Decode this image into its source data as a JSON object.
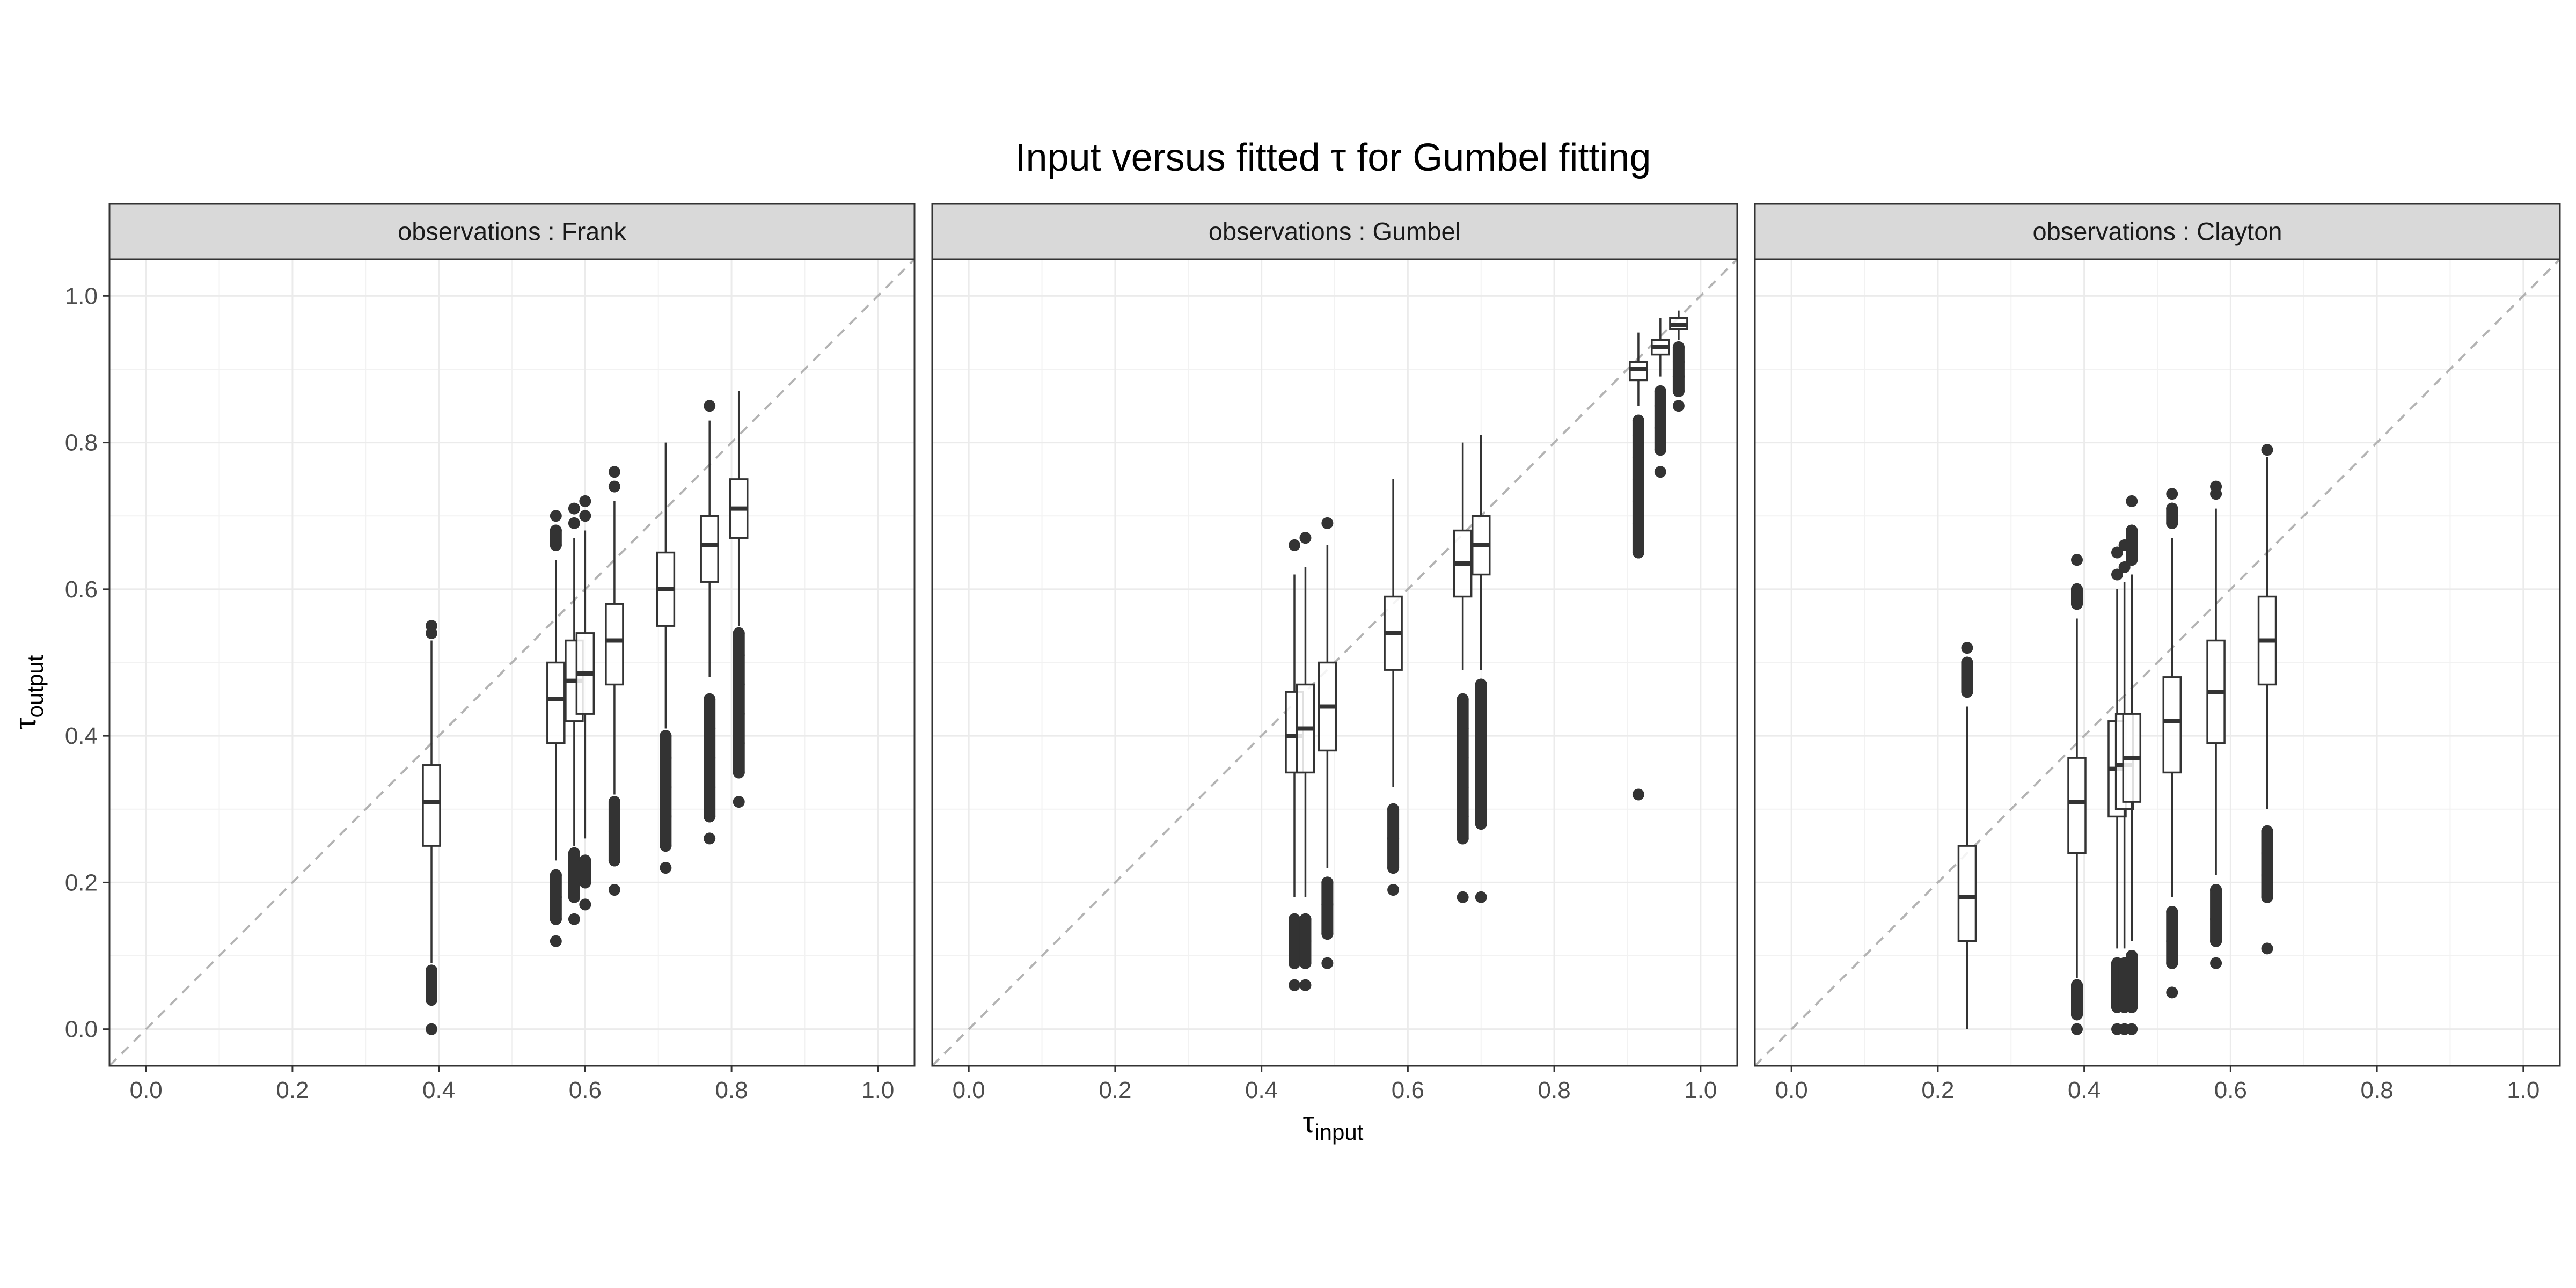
{
  "chart_data": {
    "type": "boxplot",
    "title": "Input versus fitted τ for Gumbel  fitting",
    "xlabel": {
      "symbol": "τ",
      "subscript": "input"
    },
    "ylabel": {
      "symbol": "τ",
      "subscript": "output"
    },
    "xlim": [
      -0.05,
      1.05
    ],
    "ylim": [
      -0.05,
      1.05
    ],
    "x_ticks": [
      0.0,
      0.2,
      0.4,
      0.6,
      0.8,
      1.0
    ],
    "x_tick_labels": [
      "0.0",
      "0.2",
      "0.4",
      "0.6",
      "0.8",
      "1.0"
    ],
    "y_ticks": [
      0.0,
      0.2,
      0.4,
      0.6,
      0.8,
      1.0
    ],
    "y_tick_labels": [
      "0.0",
      "0.2",
      "0.4",
      "0.6",
      "0.8",
      "1.0"
    ],
    "grid": true,
    "reference_line": "y = x (dashed)",
    "facets": [
      {
        "label": "observations : Frank",
        "boxes": [
          {
            "x": 0.39,
            "whisker_low": 0.09,
            "q1": 0.25,
            "median": 0.31,
            "q3": 0.36,
            "whisker_high": 0.53,
            "outliers_low": [
              0.0,
              0.04,
              0.06,
              0.08
            ],
            "outliers_high": [
              0.54,
              0.55
            ]
          },
          {
            "x": 0.56,
            "whisker_low": 0.23,
            "q1": 0.39,
            "median": 0.45,
            "q3": 0.5,
            "whisker_high": 0.64,
            "outliers_low": [
              0.12,
              0.15,
              0.18,
              0.21
            ],
            "outliers_high": [
              0.66,
              0.68,
              0.7
            ]
          },
          {
            "x": 0.585,
            "whisker_low": 0.25,
            "q1": 0.42,
            "median": 0.475,
            "q3": 0.53,
            "whisker_high": 0.67,
            "outliers_low": [
              0.15,
              0.18,
              0.21,
              0.24
            ],
            "outliers_high": [
              0.69,
              0.71
            ]
          },
          {
            "x": 0.6,
            "whisker_low": 0.26,
            "q1": 0.43,
            "median": 0.485,
            "q3": 0.54,
            "whisker_high": 0.68,
            "outliers_low": [
              0.17,
              0.2,
              0.23
            ],
            "outliers_high": [
              0.7,
              0.72
            ]
          },
          {
            "x": 0.64,
            "whisker_low": 0.32,
            "q1": 0.47,
            "median": 0.53,
            "q3": 0.58,
            "whisker_high": 0.72,
            "outliers_low": [
              0.19,
              0.23,
              0.27,
              0.31
            ],
            "outliers_high": [
              0.74,
              0.76
            ]
          },
          {
            "x": 0.71,
            "whisker_low": 0.41,
            "q1": 0.55,
            "median": 0.6,
            "q3": 0.65,
            "whisker_high": 0.8,
            "outliers_low": [
              0.22,
              0.25,
              0.29,
              0.33,
              0.37,
              0.4
            ]
          },
          {
            "x": 0.77,
            "whisker_low": 0.48,
            "q1": 0.61,
            "median": 0.66,
            "q3": 0.7,
            "whisker_high": 0.83,
            "outliers_low": [
              0.26,
              0.29,
              0.33,
              0.37,
              0.41,
              0.45
            ],
            "outliers_high": [
              0.85
            ]
          },
          {
            "x": 0.81,
            "whisker_low": 0.55,
            "q1": 0.67,
            "median": 0.71,
            "q3": 0.75,
            "whisker_high": 0.87,
            "outliers_low": [
              0.31,
              0.35,
              0.39,
              0.43,
              0.47,
              0.51,
              0.54
            ]
          }
        ]
      },
      {
        "label": "observations : Gumbel",
        "boxes": [
          {
            "x": 0.445,
            "whisker_low": 0.18,
            "q1": 0.35,
            "median": 0.4,
            "q3": 0.46,
            "whisker_high": 0.62,
            "outliers_low": [
              0.06,
              0.09,
              0.12,
              0.15
            ],
            "outliers_high": [
              0.66
            ]
          },
          {
            "x": 0.46,
            "whisker_low": 0.18,
            "q1": 0.35,
            "median": 0.41,
            "q3": 0.47,
            "whisker_high": 0.63,
            "outliers_low": [
              0.06,
              0.09,
              0.12,
              0.15
            ],
            "outliers_high": [
              0.67
            ]
          },
          {
            "x": 0.49,
            "whisker_low": 0.22,
            "q1": 0.38,
            "median": 0.44,
            "q3": 0.5,
            "whisker_high": 0.66,
            "outliers_low": [
              0.09,
              0.13,
              0.17,
              0.2
            ],
            "outliers_high": [
              0.69
            ]
          },
          {
            "x": 0.58,
            "whisker_low": 0.33,
            "q1": 0.49,
            "median": 0.54,
            "q3": 0.59,
            "whisker_high": 0.75,
            "outliers_low": [
              0.19,
              0.22,
              0.26,
              0.3
            ]
          },
          {
            "x": 0.675,
            "whisker_low": 0.49,
            "q1": 0.59,
            "median": 0.635,
            "q3": 0.68,
            "whisker_high": 0.8,
            "outliers_low": [
              0.18,
              0.26,
              0.29,
              0.33,
              0.37,
              0.41,
              0.45
            ]
          },
          {
            "x": 0.7,
            "whisker_low": 0.49,
            "q1": 0.62,
            "median": 0.66,
            "q3": 0.7,
            "whisker_high": 0.81,
            "outliers_low": [
              0.18,
              0.28,
              0.31,
              0.35,
              0.39,
              0.43,
              0.47
            ]
          },
          {
            "x": 0.915,
            "whisker_low": 0.85,
            "q1": 0.885,
            "median": 0.9,
            "q3": 0.91,
            "whisker_high": 0.95,
            "outliers_low": [
              0.32,
              0.65,
              0.69,
              0.72,
              0.75,
              0.78,
              0.81,
              0.83
            ]
          },
          {
            "x": 0.945,
            "whisker_low": 0.89,
            "q1": 0.92,
            "median": 0.93,
            "q3": 0.94,
            "whisker_high": 0.97,
            "outliers_low": [
              0.76,
              0.79,
              0.82,
              0.85,
              0.87
            ]
          },
          {
            "x": 0.97,
            "whisker_low": 0.94,
            "q1": 0.955,
            "median": 0.96,
            "q3": 0.97,
            "whisker_high": 0.98,
            "outliers_low": [
              0.85,
              0.87,
              0.89,
              0.91,
              0.93
            ]
          }
        ]
      },
      {
        "label": "observations : Clayton",
        "boxes": [
          {
            "x": 0.24,
            "whisker_low": 0.0,
            "q1": 0.12,
            "median": 0.18,
            "q3": 0.25,
            "whisker_high": 0.44,
            "outliers_high": [
              0.46,
              0.48,
              0.5,
              0.52
            ]
          },
          {
            "x": 0.39,
            "whisker_low": 0.07,
            "q1": 0.24,
            "median": 0.31,
            "q3": 0.37,
            "whisker_high": 0.56,
            "outliers_low": [
              0.0,
              0.02,
              0.04,
              0.06
            ],
            "outliers_high": [
              0.58,
              0.6,
              0.64
            ]
          },
          {
            "x": 0.445,
            "whisker_low": 0.11,
            "q1": 0.29,
            "median": 0.355,
            "q3": 0.42,
            "whisker_high": 0.6,
            "outliers_low": [
              0.0,
              0.03,
              0.06,
              0.09
            ],
            "outliers_high": [
              0.62,
              0.65
            ]
          },
          {
            "x": 0.455,
            "whisker_low": 0.11,
            "q1": 0.3,
            "median": 0.36,
            "q3": 0.43,
            "whisker_high": 0.61,
            "outliers_low": [
              0.0,
              0.03,
              0.06,
              0.09
            ],
            "outliers_high": [
              0.63,
              0.66
            ]
          },
          {
            "x": 0.465,
            "whisker_low": 0.12,
            "q1": 0.31,
            "median": 0.37,
            "q3": 0.43,
            "whisker_high": 0.62,
            "outliers_low": [
              0.0,
              0.03,
              0.06,
              0.1
            ],
            "outliers_high": [
              0.64,
              0.68,
              0.72
            ]
          },
          {
            "x": 0.52,
            "whisker_low": 0.18,
            "q1": 0.35,
            "median": 0.42,
            "q3": 0.48,
            "whisker_high": 0.67,
            "outliers_low": [
              0.05,
              0.09,
              0.12,
              0.16
            ],
            "outliers_high": [
              0.69,
              0.71,
              0.73
            ]
          },
          {
            "x": 0.58,
            "whisker_low": 0.21,
            "q1": 0.39,
            "median": 0.46,
            "q3": 0.53,
            "whisker_high": 0.71,
            "outliers_low": [
              0.09,
              0.12,
              0.15,
              0.19
            ],
            "outliers_high": [
              0.73,
              0.74
            ]
          },
          {
            "x": 0.65,
            "whisker_low": 0.3,
            "q1": 0.47,
            "median": 0.53,
            "q3": 0.59,
            "whisker_high": 0.78,
            "outliers_low": [
              0.11,
              0.18,
              0.21,
              0.24,
              0.27
            ],
            "outliers_high": [
              0.79
            ]
          }
        ]
      }
    ]
  }
}
